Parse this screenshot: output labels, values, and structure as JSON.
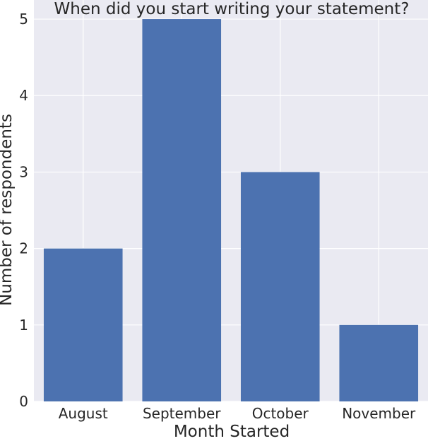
{
  "chart_data": {
    "type": "bar",
    "title": "When did you start writing your statement?",
    "xlabel": "Month Started",
    "ylabel": "Number of respondents",
    "categories": [
      "August",
      "September",
      "October",
      "November"
    ],
    "values": [
      2,
      5,
      3,
      1
    ],
    "ylim": [
      0,
      5.25
    ],
    "yticks": [
      0,
      1,
      2,
      3,
      4,
      5
    ],
    "grid": true,
    "colors": {
      "bar": "#4c72b0",
      "background": "#eaeaf2",
      "grid": "#ffffff"
    }
  }
}
